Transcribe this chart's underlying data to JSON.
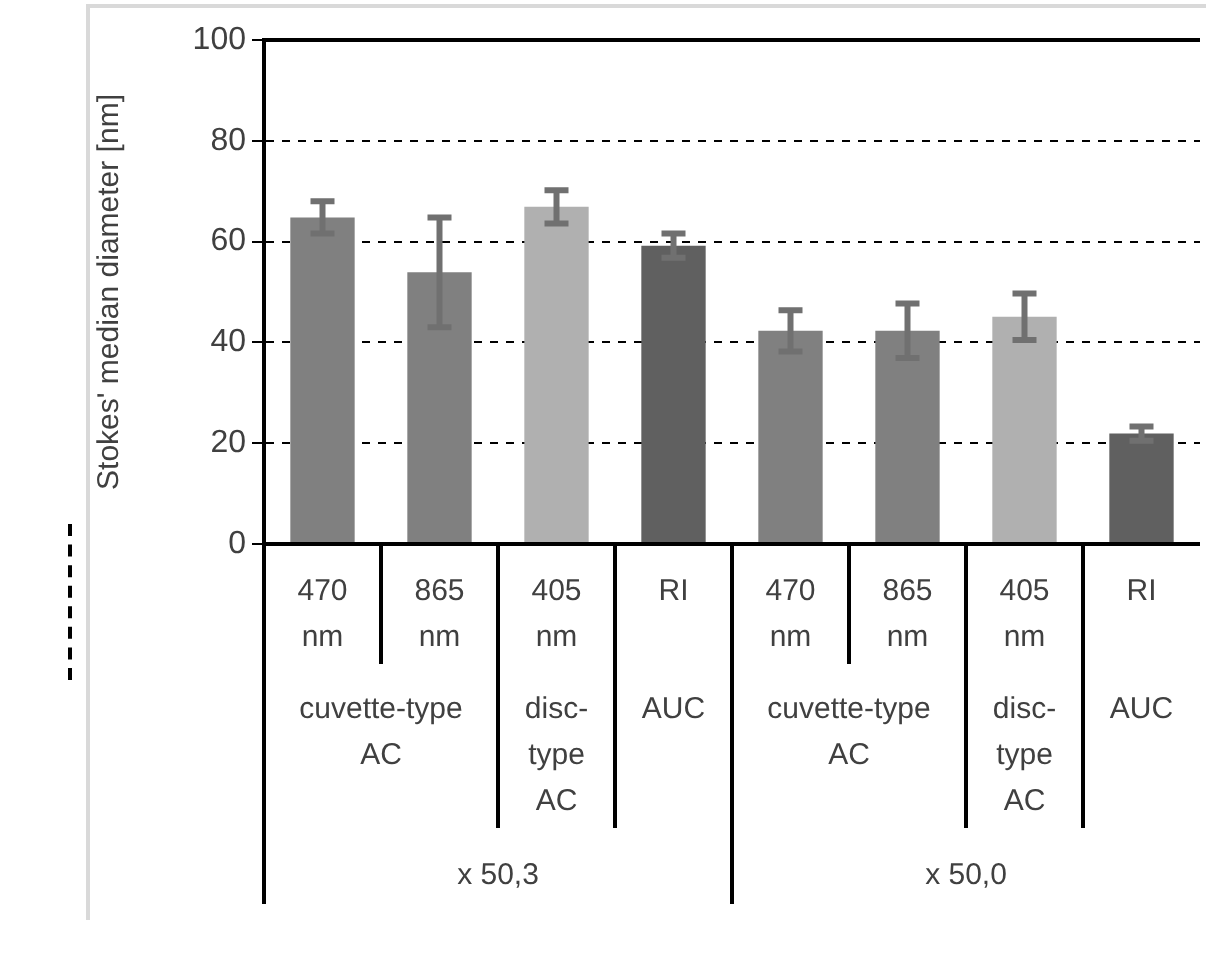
{
  "chart_data": {
    "type": "bar",
    "ylabel": "Stokes' median diameter [nm]",
    "categories": [
      "470 nm",
      "865 nm",
      "405 nm",
      "RI",
      "470 nm",
      "865 nm",
      "405 nm",
      "RI"
    ],
    "values": [
      64.8,
      53.9,
      66.9,
      59.2,
      42.3,
      42.3,
      45.1,
      21.9
    ],
    "errors": [
      3.2,
      10.9,
      3.3,
      2.4,
      4.1,
      5.4,
      4.6,
      1.4
    ],
    "colors": [
      "#808080",
      "#808080",
      "#b0b0b0",
      "#606060",
      "#808080",
      "#808080",
      "#b0b0b0",
      "#606060"
    ],
    "annotations": [
      "cuvette-type AC",
      "disc-type AC",
      "AUC",
      "cuvette-type AC",
      "disc-type AC",
      "AUC",
      "x 50,3",
      "x 50,0"
    ],
    "ylim": [
      0,
      100
    ],
    "yticks": [
      0,
      20,
      40,
      60,
      80,
      100
    ],
    "grid": "y"
  }
}
